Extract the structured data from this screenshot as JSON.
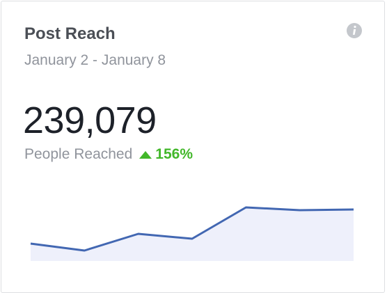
{
  "header": {
    "title": "Post Reach",
    "subtitle": "January 2 - January 8"
  },
  "metric": {
    "value": "239,079",
    "label": "People Reached",
    "change": "156%"
  },
  "chart_data": {
    "type": "line",
    "values": [
      25,
      15,
      39,
      32,
      77,
      73,
      74
    ],
    "ylim": [
      0,
      80
    ],
    "color": "#4267b2",
    "area_color": "#eef0fb"
  }
}
